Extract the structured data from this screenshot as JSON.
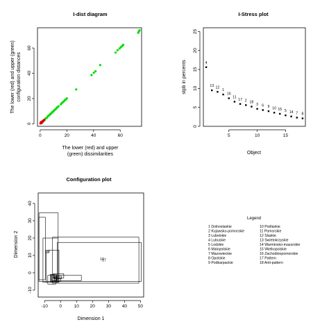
{
  "panels": {
    "idist": {
      "title": "I-dist diagram",
      "xlabel_line1": "The lower (red) and upper",
      "xlabel_line2": "(green) dissimilarities",
      "ylabel_line1": "The lower (red) and upper (green)",
      "ylabel_line2": "configuration distances"
    },
    "stress": {
      "title": "I-Stress plot",
      "xlabel": "Object",
      "ylabel": "stpb in percents"
    },
    "config": {
      "title": "Configuration plot",
      "xlabel": "Dimension 1",
      "ylabel": "Dimension 2"
    }
  },
  "legend": {
    "title": "Legend",
    "entries": [
      "1 Dolnoslaskie",
      "2 Kujawsko-pomorskie",
      "3 Lubelskie",
      "4 Lubuskie",
      "5 Lodzkie",
      "6 Malopolskie",
      "7 Mazowieckie",
      "8 Opolskie",
      "9 Podkarpackie",
      "10 Podlaskie",
      "11 Pomorskie",
      "12 Slaskie",
      "13 Swietokrzyskie",
      "14 Warminsko-mazurskie",
      "15 Wielkopolskie",
      "16 Zachodniopomorskie",
      "17 Pattern",
      "18 Anti-pattern"
    ]
  },
  "colors": {
    "lower": "#dd0000",
    "upper": "#00dd00",
    "ink": "#000000"
  },
  "chart_data": [
    {
      "type": "scatter",
      "title": "I-dist diagram",
      "xlabel": "The lower (red) and upper (green) dissimilarities",
      "ylabel": "The lower (red) and upper (green) configuration distances",
      "xlim": [
        -2,
        76
      ],
      "ylim": [
        -2,
        76
      ],
      "xticks": [
        0,
        20,
        40,
        60
      ],
      "yticks": [
        0,
        20,
        40,
        60
      ],
      "series": [
        {
          "name": "lower",
          "color": "#dd0000",
          "points": [
            [
              0.2,
              0.3
            ],
            [
              0.5,
              0.6
            ],
            [
              0.8,
              0.7
            ],
            [
              1.0,
              1.2
            ],
            [
              1.3,
              1.1
            ],
            [
              1.6,
              1.8
            ],
            [
              2.0,
              1.7
            ],
            [
              2.3,
              2.5
            ],
            [
              2.7,
              2.4
            ],
            [
              3.0,
              3.1
            ],
            [
              1.1,
              0.5
            ],
            [
              0.6,
              1.4
            ],
            [
              1.9,
              2.2
            ]
          ]
        },
        {
          "name": "upper",
          "color": "#00dd00",
          "points": [
            [
              3.5,
              3.2
            ],
            [
              4.0,
              4.2
            ],
            [
              4.6,
              4.5
            ],
            [
              5.2,
              5.0
            ],
            [
              5.8,
              6.0
            ],
            [
              6.3,
              6.5
            ],
            [
              7.0,
              6.8
            ],
            [
              7.5,
              7.6
            ],
            [
              8.0,
              8.1
            ],
            [
              8.6,
              8.5
            ],
            [
              9.2,
              9.4
            ],
            [
              9.8,
              9.7
            ],
            [
              10.4,
              10.5
            ],
            [
              11.0,
              11.2
            ],
            [
              11.6,
              11.5
            ],
            [
              12.2,
              12.4
            ],
            [
              13.0,
              13.1
            ],
            [
              13.8,
              13.9
            ],
            [
              15.5,
              15.4
            ],
            [
              16.2,
              16.4
            ],
            [
              17.0,
              17.1
            ],
            [
              17.8,
              17.8
            ],
            [
              18.5,
              18.7
            ],
            [
              19.2,
              19.3
            ],
            [
              20.0,
              20.1
            ],
            [
              27.0,
              27.2
            ],
            [
              38.5,
              38.6
            ],
            [
              40.2,
              40.4
            ],
            [
              41.5,
              41.6
            ],
            [
              45.0,
              46.5
            ],
            [
              56.5,
              56.4
            ],
            [
              58.0,
              58.2
            ],
            [
              59.5,
              59.6
            ],
            [
              60.5,
              60.7
            ],
            [
              61.5,
              61.6
            ],
            [
              62.2,
              62.5
            ],
            [
              73.5,
              72.0
            ],
            [
              74.0,
              73.2
            ],
            [
              74.5,
              74.0
            ]
          ]
        }
      ]
    },
    {
      "type": "scatter",
      "title": "I-Stress plot",
      "xlabel": "Object",
      "ylabel": "stpb in percents",
      "xlim": [
        0.5,
        18.5
      ],
      "ylim": [
        0,
        26
      ],
      "xticks": [
        5,
        10,
        15
      ],
      "yticks": [
        0,
        5,
        10,
        15,
        20,
        25
      ],
      "points": [
        {
          "x": 1,
          "y": 15.6,
          "label": "4"
        },
        {
          "x": 2,
          "y": 9.5,
          "label": "13"
        },
        {
          "x": 3,
          "y": 9.1,
          "label": "12"
        },
        {
          "x": 4,
          "y": 8.4,
          "label": "1"
        },
        {
          "x": 5,
          "y": 7.4,
          "label": "16"
        },
        {
          "x": 6,
          "y": 6.5,
          "label": "11"
        },
        {
          "x": 7,
          "y": 5.9,
          "label": "17"
        },
        {
          "x": 8,
          "y": 5.6,
          "label": "2"
        },
        {
          "x": 9,
          "y": 5.2,
          "label": "18"
        },
        {
          "x": 10,
          "y": 4.6,
          "label": "3"
        },
        {
          "x": 11,
          "y": 4.3,
          "label": "6"
        },
        {
          "x": 12,
          "y": 4.0,
          "label": "9"
        },
        {
          "x": 13,
          "y": 3.6,
          "label": "10"
        },
        {
          "x": 14,
          "y": 3.3,
          "label": "15"
        },
        {
          "x": 15,
          "y": 2.9,
          "label": "5"
        },
        {
          "x": 16,
          "y": 2.6,
          "label": "14"
        },
        {
          "x": 17,
          "y": 2.3,
          "label": "7"
        },
        {
          "x": 18,
          "y": 2.1,
          "label": "8"
        }
      ]
    },
    {
      "type": "scatter",
      "title": "Configuration plot",
      "xlabel": "Dimension 1",
      "ylabel": "Dimension 2",
      "xlim": [
        -14,
        52
      ],
      "ylim": [
        -14,
        46
      ],
      "xticks": [
        -10,
        0,
        10,
        20,
        30,
        40,
        50
      ],
      "yticks": [
        -10,
        0,
        10,
        20,
        30,
        40
      ],
      "points": [
        {
          "x": -8.5,
          "y": 12.0,
          "label": "18"
        },
        {
          "x": -7.2,
          "y": 12.4,
          "label": "2"
        },
        {
          "x": 26.0,
          "y": 8.0,
          "label": "16"
        },
        {
          "x": 27.2,
          "y": 7.5,
          "label": "17"
        },
        {
          "x": -2.0,
          "y": -3.0,
          "label": "11"
        },
        {
          "x": -4.0,
          "y": -2.0,
          "label": "1"
        },
        {
          "x": -4.0,
          "y": -4.0,
          "label": "3"
        },
        {
          "x": -3.0,
          "y": -4.5,
          "label": "4"
        },
        {
          "x": -5.0,
          "y": -5.0,
          "label": "5"
        }
      ],
      "boxes": [
        [
          -13.5,
          -4.0,
          -9.5,
          32.0
        ],
        [
          -13.5,
          -5.0,
          -1.5,
          34.5
        ],
        [
          -11.0,
          -5.5,
          -1.5,
          20.0
        ],
        [
          -9.0,
          -5.5,
          -1.0,
          13.0
        ],
        [
          -8.0,
          -6.5,
          -3.0,
          -1.5
        ],
        [
          -6.5,
          -5.0,
          -4.0,
          -1.0
        ],
        [
          -6.0,
          -5.5,
          -2.5,
          -1.0
        ],
        [
          -4.5,
          -3.0,
          2.0,
          -0.5
        ],
        [
          -4.5,
          -2.5,
          -2.0,
          -2.0
        ],
        [
          -4.0,
          -4.5,
          -2.5,
          -3.0
        ],
        [
          -4.0,
          -3.5,
          0.5,
          -2.0
        ],
        [
          -5.0,
          -5.0,
          0.0,
          -3.0
        ],
        [
          -5.5,
          -4.5,
          13.0,
          -1.5
        ],
        [
          -5.0,
          -6.0,
          49.0,
          20.5
        ],
        [
          -2.0,
          -5.0,
          50.5,
          17.5
        ]
      ]
    }
  ]
}
